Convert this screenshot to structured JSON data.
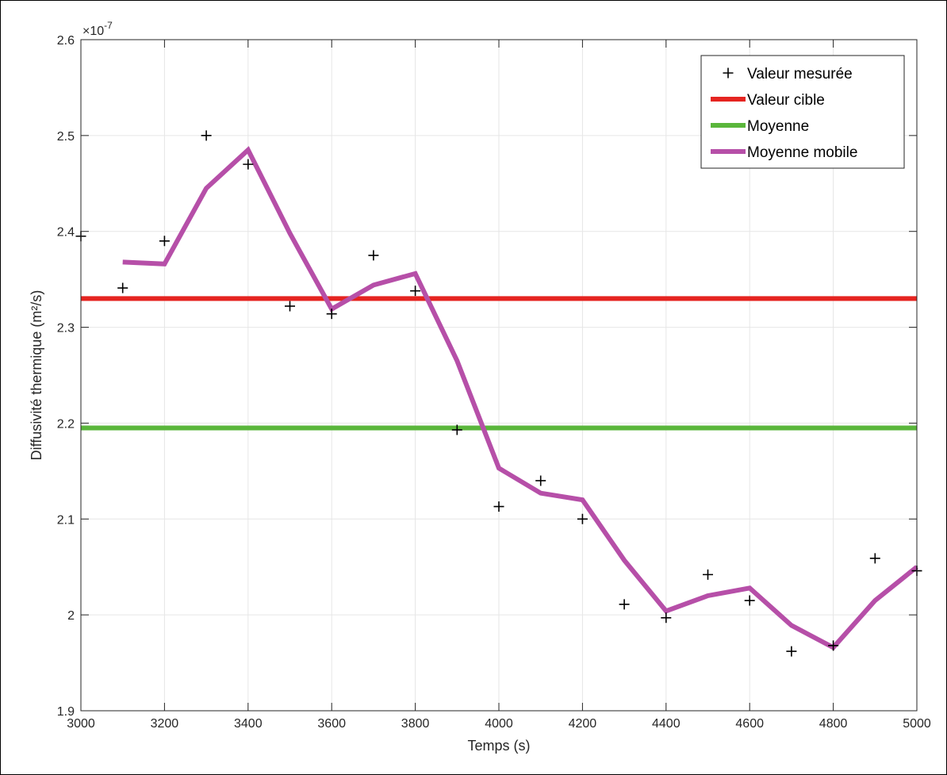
{
  "chart_data": {
    "type": "line",
    "title": "",
    "xlabel": "Temps (s)",
    "ylabel": "Diffusivité thermique (m²/s)",
    "y_exponent_label": "×10",
    "y_exponent_power": "-7",
    "xlim": [
      3000,
      5000
    ],
    "ylim": [
      1.9,
      2.6
    ],
    "xticks": [
      3000,
      3200,
      3400,
      3600,
      3800,
      4000,
      4200,
      4400,
      4600,
      4800,
      5000
    ],
    "xtick_labels": [
      "3000",
      "3200",
      "3400",
      "3600",
      "3800",
      "4000",
      "4200",
      "4400",
      "4600",
      "4800",
      "5000"
    ],
    "yticks": [
      1.9,
      2.0,
      2.1,
      2.2,
      2.3,
      2.4,
      2.5,
      2.6
    ],
    "ytick_labels": [
      "1.9",
      "2",
      "2.1",
      "2.2",
      "2.3",
      "2.4",
      "2.5",
      "2.6"
    ],
    "grid": true,
    "legend_position": "top-right",
    "series": [
      {
        "name": "Valeur mesurée",
        "style": "marker-plus",
        "color": "#000000",
        "x": [
          3000,
          3100,
          3200,
          3300,
          3400,
          3500,
          3600,
          3700,
          3800,
          3900,
          4000,
          4100,
          4200,
          4300,
          4400,
          4500,
          4600,
          4700,
          4800,
          4900,
          5000
        ],
        "y": [
          2.395,
          2.341,
          2.39,
          2.5,
          2.47,
          2.322,
          2.314,
          2.375,
          2.338,
          2.193,
          2.113,
          2.14,
          2.1,
          2.011,
          1.997,
          2.042,
          2.015,
          1.962,
          1.968,
          2.059,
          2.046
        ]
      },
      {
        "name": "Valeur cible",
        "style": "line",
        "color": "#e52420",
        "x": [
          3000,
          5000
        ],
        "y": [
          2.33,
          2.33
        ]
      },
      {
        "name": "Moyenne",
        "style": "line",
        "color": "#5ab63b",
        "x": [
          3000,
          5000
        ],
        "y": [
          2.195,
          2.195
        ]
      },
      {
        "name": "Moyenne mobile",
        "style": "line",
        "color": "#b64fa8",
        "x": [
          3100,
          3200,
          3300,
          3400,
          3500,
          3600,
          3700,
          3800,
          3900,
          4000,
          4100,
          4200,
          4300,
          4400,
          4500,
          4600,
          4700,
          4800,
          4900,
          5000
        ],
        "y": [
          2.368,
          2.366,
          2.445,
          2.485,
          2.398,
          2.319,
          2.344,
          2.356,
          2.265,
          2.153,
          2.127,
          2.12,
          2.057,
          2.004,
          2.02,
          2.028,
          1.989,
          1.966,
          2.015,
          2.05
        ]
      }
    ]
  }
}
